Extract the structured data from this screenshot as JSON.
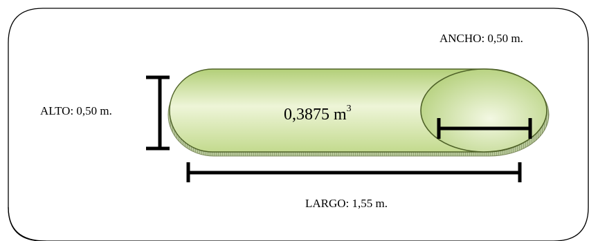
{
  "labels": {
    "ancho": "ANCHO: 0,50 m.",
    "alto": "ALTO: 0,50 m.",
    "largo": "LARGO: 1,55 m."
  },
  "volume": {
    "value": "0,3875 m",
    "exponent": "3"
  },
  "colors": {
    "frame": "#000000",
    "fill_light": "#f4f9e4",
    "fill_dark": "#b7d37d",
    "outline": "#4f6228",
    "dimension_line": "#000000"
  }
}
